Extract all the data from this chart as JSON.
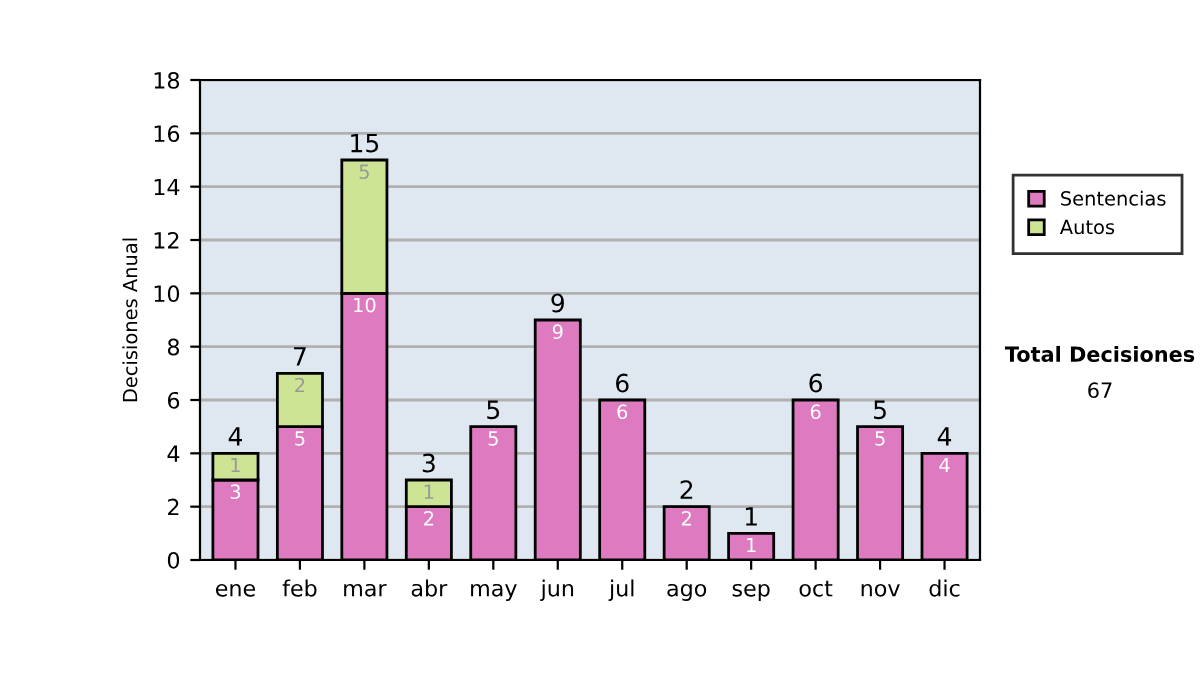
{
  "chart_data": {
    "type": "bar",
    "stacked": true,
    "ylabel": "Decisiones Anual",
    "categories": [
      "ene",
      "feb",
      "mar",
      "abr",
      "may",
      "jun",
      "jul",
      "ago",
      "sep",
      "oct",
      "nov",
      "dic"
    ],
    "series": [
      {
        "name": "Sentencias",
        "color": "#dd7ac0",
        "values": [
          3,
          5,
          10,
          2,
          5,
          9,
          6,
          2,
          1,
          6,
          5,
          4
        ],
        "value_labels": [
          "3",
          "5",
          "10",
          "2",
          "5",
          "9",
          "6",
          "2",
          "1",
          "6",
          "5",
          "4"
        ]
      },
      {
        "name": "Autos",
        "color": "#cde494",
        "values": [
          1,
          2,
          5,
          1,
          null,
          null,
          null,
          null,
          null,
          null,
          null,
          null
        ],
        "value_labels": [
          "1",
          "2",
          "5",
          "1",
          null,
          null,
          null,
          null,
          null,
          null,
          null,
          null
        ]
      }
    ],
    "totals": [
      "4",
      "7",
      "15",
      "3",
      "5",
      "9",
      "6",
      "2",
      "1",
      "6",
      "5",
      "4"
    ],
    "ylim": [
      0,
      18
    ],
    "yticks": [
      0,
      2,
      4,
      6,
      8,
      10,
      12,
      14,
      16,
      18
    ],
    "grid": "y",
    "legend": "right",
    "annotations": [
      "Total Decisiones",
      "67"
    ]
  }
}
